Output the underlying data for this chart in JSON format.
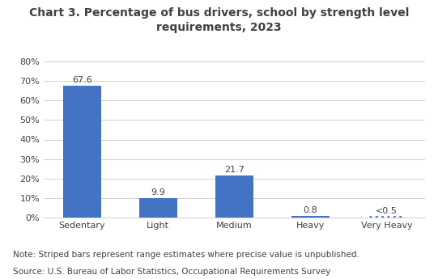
{
  "title": "Chart 3. Percentage of bus drivers, school by strength level\nrequirements, 2023",
  "categories": [
    "Sedentary",
    "Light",
    "Medium",
    "Heavy",
    "Very Heavy"
  ],
  "values": [
    67.6,
    9.9,
    21.7,
    0.8,
    0.5
  ],
  "labels": [
    "67.6",
    "9.9",
    "21.7",
    "0.8",
    "<0.5"
  ],
  "bar_color": "#4472c4",
  "striped": [
    false,
    false,
    false,
    true,
    true
  ],
  "ylim": [
    0,
    80
  ],
  "yticks": [
    0,
    10,
    20,
    30,
    40,
    50,
    60,
    70,
    80
  ],
  "ytick_labels": [
    "0%",
    "10%",
    "20%",
    "30%",
    "40%",
    "50%",
    "60%",
    "70%",
    "80%"
  ],
  "note1": "Note: Striped bars represent range estimates where precise value is unpublished.",
  "note2": "Source: U.S. Bureau of Labor Statistics, Occupational Requirements Survey",
  "background_color": "#ffffff",
  "title_fontsize": 10,
  "label_fontsize": 8,
  "tick_fontsize": 8,
  "note_fontsize": 7.5,
  "title_color": "#404040",
  "text_color": "#404040"
}
